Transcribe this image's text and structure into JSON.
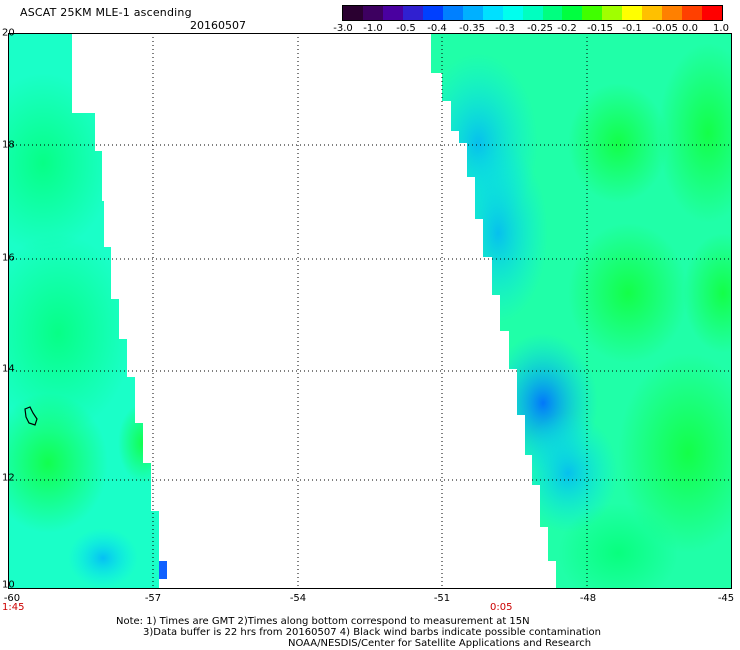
{
  "title": "ASCAT 25KM MLE-1 ascending",
  "date": "20160507",
  "colorbar": {
    "colors": [
      "#2a0030",
      "#3d0060",
      "#4a00a0",
      "#3020d0",
      "#0040ff",
      "#0080ff",
      "#00b0ff",
      "#00e0ff",
      "#00ffee",
      "#00ffc0",
      "#00ff80",
      "#00ff40",
      "#40ff00",
      "#a0ff00",
      "#ffff00",
      "#ffc000",
      "#ff8000",
      "#ff4000",
      "#ff0000"
    ],
    "ticks": [
      "-3.0",
      "-1.0",
      "-0.5",
      "-0.4",
      "-0.35",
      "-0.3",
      "-0.25",
      "-0.2",
      "-0.15",
      "-0.1",
      "-0.05",
      "0.0",
      "1.0"
    ]
  },
  "axes": {
    "lat_labels": [
      "20",
      "18",
      "16",
      "14",
      "12",
      "10"
    ],
    "lon_labels": [
      "-60",
      "-57",
      "-54",
      "-51",
      "-48",
      "-45"
    ]
  },
  "times": [
    "1:45",
    "0:05"
  ],
  "notes": [
    "Note: 1) Times are GMT 2)Times along bottom correspond to measurement at 15N",
    "3)Data buffer is 22 hrs from 20160507 4) Black wind barbs indicate possible contamination",
    "NOAA/NESDIS/Center for Satellite Applications and Research"
  ]
}
